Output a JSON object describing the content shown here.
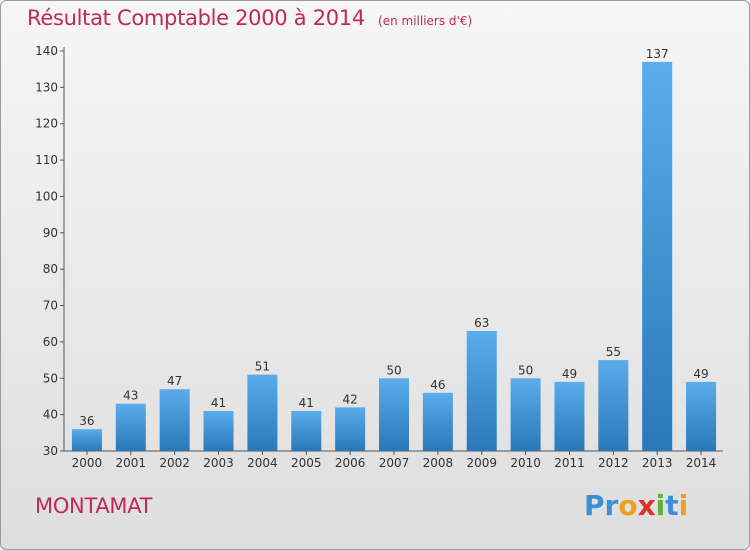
{
  "header": {
    "title": "Résultat Comptable 2000 à 2014",
    "subtitle": "(en milliers d'€)"
  },
  "footer": {
    "commune": "MONTAMAT",
    "logo_letters": [
      {
        "ch": "P",
        "color": "#3a8fd6"
      },
      {
        "ch": "r",
        "color": "#3a8fd6"
      },
      {
        "ch": "o",
        "color": "#e8a21d"
      },
      {
        "ch": "x",
        "color": "#d9342b"
      },
      {
        "ch": "i",
        "color": "#5cb33a"
      },
      {
        "ch": "t",
        "color": "#3a8fd6"
      },
      {
        "ch": "i",
        "color": "#e8a21d"
      }
    ]
  },
  "chart_data": {
    "type": "bar",
    "title": "Résultat Comptable 2000 à 2014",
    "subtitle": "(en milliers d'€)",
    "categories": [
      "2000",
      "2001",
      "2002",
      "2003",
      "2004",
      "2005",
      "2006",
      "2007",
      "2008",
      "2009",
      "2010",
      "2011",
      "2012",
      "2013",
      "2014"
    ],
    "values": [
      36,
      43,
      47,
      41,
      51,
      41,
      42,
      50,
      46,
      63,
      50,
      49,
      55,
      137,
      49
    ],
    "ylim": [
      30,
      140
    ],
    "yticks": [
      30,
      40,
      50,
      60,
      70,
      80,
      90,
      100,
      110,
      120,
      130,
      140
    ],
    "grid": false,
    "bar_color_top": "#5aacea",
    "bar_color_bottom": "#2a78b8",
    "text_color": "#333333"
  }
}
